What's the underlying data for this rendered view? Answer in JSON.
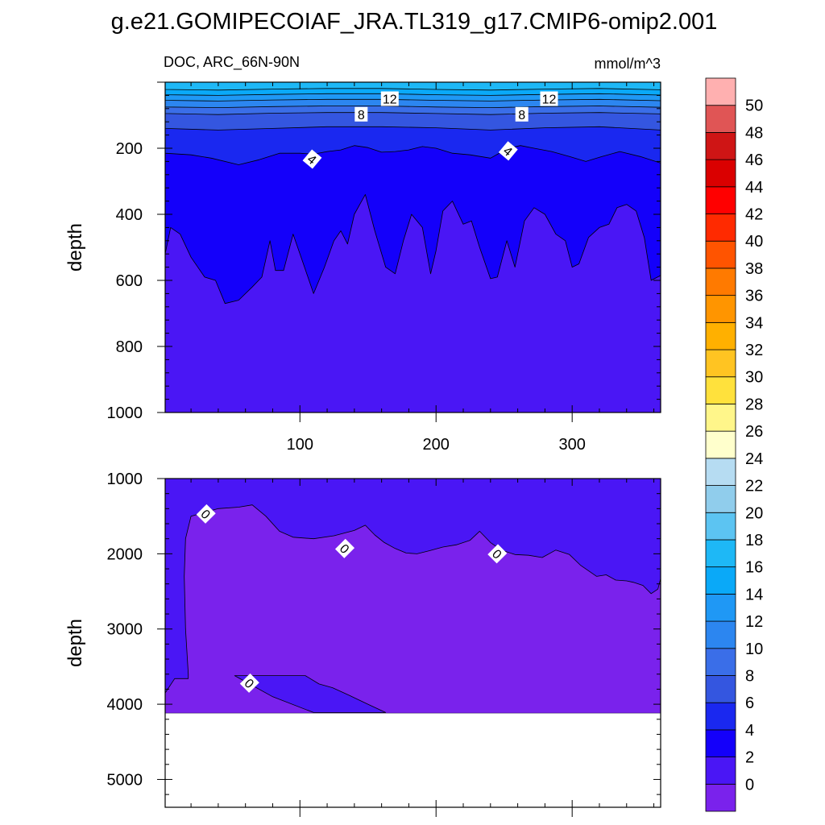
{
  "title": "g.e21.GOMIPECOIAF_JRA.TL319_g17.CMIP6-omip2.001",
  "variable_label": "DOC, ARC_66N-90N",
  "units_label": "mmol/m^3",
  "chart_data": [
    {
      "type": "heatmap",
      "panel": "upper",
      "ylabel": "depth",
      "y_reversed": true,
      "xlim": [
        1,
        365
      ],
      "ylim": [
        0,
        1000
      ],
      "x_ticks": [
        100,
        200,
        300
      ],
      "x_tick_labels": [
        "100",
        "200",
        "300"
      ],
      "y_ticks": [
        200,
        400,
        600,
        800,
        1000
      ],
      "y_tick_labels": [
        "200",
        "400",
        "600",
        "800",
        "1000"
      ],
      "contour_labels": [
        {
          "text": "12",
          "x": 166,
          "y": 50
        },
        {
          "text": "12",
          "x": 283,
          "y": 50
        },
        {
          "text": "8",
          "x": 145,
          "y": 97
        },
        {
          "text": "8",
          "x": 263,
          "y": 97
        },
        {
          "text": "4",
          "x": 109,
          "y": 233
        },
        {
          "text": "4",
          "x": 253,
          "y": 208
        }
      ],
      "regions": [
        {
          "level_range": "0-2",
          "color": "#4a16f5",
          "boundary": null
        },
        {
          "level_range": "2-4",
          "color": "#1400fa",
          "boundary": [
            [
              1,
              520
            ],
            [
              5,
              440
            ],
            [
              12,
              460
            ],
            [
              20,
              530
            ],
            [
              30,
              590
            ],
            [
              38,
              600
            ],
            [
              45,
              670
            ],
            [
              55,
              660
            ],
            [
              65,
              620
            ],
            [
              72,
              590
            ],
            [
              78,
              480
            ],
            [
              82,
              570
            ],
            [
              88,
              570
            ],
            [
              95,
              460
            ],
            [
              103,
              555
            ],
            [
              110,
              640
            ],
            [
              118,
              560
            ],
            [
              125,
              480
            ],
            [
              130,
              450
            ],
            [
              135,
              490
            ],
            [
              140,
              400
            ],
            [
              148,
              340
            ],
            [
              155,
              450
            ],
            [
              163,
              560
            ],
            [
              170,
              580
            ],
            [
              176,
              480
            ],
            [
              182,
              400
            ],
            [
              190,
              440
            ],
            [
              196,
              580
            ],
            [
              200,
              510
            ],
            [
              205,
              390
            ],
            [
              212,
              360
            ],
            [
              220,
              430
            ],
            [
              226,
              420
            ],
            [
              232,
              500
            ],
            [
              240,
              595
            ],
            [
              245,
              590
            ],
            [
              252,
              480
            ],
            [
              258,
              560
            ],
            [
              265,
              420
            ],
            [
              272,
              380
            ],
            [
              280,
              400
            ],
            [
              288,
              460
            ],
            [
              295,
              480
            ],
            [
              300,
              560
            ],
            [
              305,
              550
            ],
            [
              312,
              470
            ],
            [
              320,
              440
            ],
            [
              327,
              430
            ],
            [
              333,
              380
            ],
            [
              340,
              370
            ],
            [
              347,
              390
            ],
            [
              353,
              470
            ],
            [
              358,
              600
            ],
            [
              365,
              585
            ]
          ]
        },
        {
          "level_range": "4-6",
          "color": "#1a28f0",
          "boundary": [
            [
              1,
              215
            ],
            [
              20,
              220
            ],
            [
              35,
              230
            ],
            [
              55,
              250
            ],
            [
              70,
              235
            ],
            [
              85,
              215
            ],
            [
              100,
              215
            ],
            [
              110,
              218
            ],
            [
              120,
              210
            ],
            [
              130,
              205
            ],
            [
              140,
              192
            ],
            [
              150,
              198
            ],
            [
              160,
              212
            ],
            [
              170,
              210
            ],
            [
              180,
              205
            ],
            [
              190,
              195
            ],
            [
              200,
              200
            ],
            [
              212,
              215
            ],
            [
              225,
              220
            ],
            [
              240,
              230
            ],
            [
              253,
              200
            ],
            [
              262,
              192
            ],
            [
              272,
              200
            ],
            [
              285,
              210
            ],
            [
              298,
              225
            ],
            [
              310,
              240
            ],
            [
              322,
              225
            ],
            [
              335,
              210
            ],
            [
              350,
              225
            ],
            [
              365,
              245
            ]
          ]
        },
        {
          "level_range": "6-8",
          "color": "#3456e0",
          "boundary": [
            [
              1,
              140
            ],
            [
              40,
              145
            ],
            [
              80,
              140
            ],
            [
              120,
              135
            ],
            [
              160,
              135
            ],
            [
              200,
              138
            ],
            [
              240,
              145
            ],
            [
              280,
              138
            ],
            [
              320,
              135
            ],
            [
              365,
              145
            ]
          ]
        },
        {
          "level_range": "8-10",
          "color": "#3a6ee8",
          "boundary": [
            [
              1,
              95
            ],
            [
              40,
              98
            ],
            [
              80,
              94
            ],
            [
              120,
              92
            ],
            [
              160,
              92
            ],
            [
              200,
              95
            ],
            [
              240,
              98
            ],
            [
              280,
              94
            ],
            [
              320,
              92
            ],
            [
              365,
              96
            ]
          ]
        },
        {
          "level_range": "10-12",
          "color": "#2c86f0",
          "boundary": [
            [
              1,
              75
            ],
            [
              40,
              77
            ],
            [
              80,
              74
            ],
            [
              120,
              72
            ],
            [
              160,
              72
            ],
            [
              200,
              75
            ],
            [
              240,
              77
            ],
            [
              280,
              74
            ],
            [
              320,
              72
            ],
            [
              365,
              76
            ]
          ]
        },
        {
          "level_range": "12-14",
          "color": "#1f98f5",
          "boundary": [
            [
              1,
              55
            ],
            [
              40,
              57
            ],
            [
              80,
              54
            ],
            [
              120,
              52
            ],
            [
              160,
              52
            ],
            [
              200,
              55
            ],
            [
              240,
              57
            ],
            [
              280,
              54
            ],
            [
              320,
              52
            ],
            [
              365,
              56
            ]
          ]
        },
        {
          "level_range": "14-16",
          "color": "#0aa9f8",
          "boundary": [
            [
              1,
              38
            ],
            [
              40,
              40
            ],
            [
              80,
              37
            ],
            [
              120,
              35
            ],
            [
              160,
              35
            ],
            [
              200,
              38
            ],
            [
              240,
              40
            ],
            [
              280,
              37
            ],
            [
              320,
              35
            ],
            [
              365,
              39
            ]
          ]
        },
        {
          "level_range": "16-18",
          "color": "#1eb8f6",
          "boundary": [
            [
              1,
              22
            ],
            [
              40,
              24
            ],
            [
              80,
              21
            ],
            [
              120,
              19
            ],
            [
              160,
              19
            ],
            [
              200,
              22
            ],
            [
              240,
              24
            ],
            [
              280,
              21
            ],
            [
              320,
              19
            ],
            [
              365,
              23
            ]
          ]
        }
      ]
    },
    {
      "type": "heatmap",
      "panel": "lower",
      "ylabel": "depth",
      "y_reversed": true,
      "xlim": [
        1,
        365
      ],
      "ylim": [
        1000,
        5370
      ],
      "x_ticks": [
        100,
        200,
        300
      ],
      "x_tick_labels": [],
      "y_ticks": [
        1000,
        2000,
        3000,
        4000,
        5000
      ],
      "y_tick_labels": [
        "1000",
        "2000",
        "3000",
        "4000",
        "5000"
      ],
      "data_bottom": 4120,
      "contour_labels": [
        {
          "text": "0",
          "x": 31,
          "y": 1470
        },
        {
          "text": "0",
          "x": 133,
          "y": 1930
        },
        {
          "text": "0",
          "x": 245,
          "y": 2000
        },
        {
          "text": "0",
          "x": 63,
          "y": 3720
        }
      ],
      "regions": [
        {
          "level_range": "0-2",
          "color": "#4a16f5",
          "boundary": null
        },
        {
          "level_range": "<0",
          "color": "#7a22ec",
          "polygon": [
            [
              18,
              3600
            ],
            [
              16,
              3000
            ],
            [
              15,
              2300
            ],
            [
              16,
              1800
            ],
            [
              20,
              1500
            ],
            [
              30,
              1450
            ],
            [
              40,
              1400
            ],
            [
              55,
              1380
            ],
            [
              65,
              1350
            ],
            [
              75,
              1500
            ],
            [
              85,
              1700
            ],
            [
              95,
              1780
            ],
            [
              110,
              1800
            ],
            [
              125,
              1760
            ],
            [
              140,
              1690
            ],
            [
              148,
              1620
            ],
            [
              155,
              1750
            ],
            [
              162,
              1850
            ],
            [
              170,
              1930
            ],
            [
              178,
              1990
            ],
            [
              186,
              2000
            ],
            [
              195,
              1960
            ],
            [
              205,
              1910
            ],
            [
              215,
              1880
            ],
            [
              225,
              1820
            ],
            [
              232,
              1700
            ],
            [
              240,
              1850
            ],
            [
              248,
              1950
            ],
            [
              258,
              2010
            ],
            [
              268,
              2020
            ],
            [
              278,
              2050
            ],
            [
              288,
              1950
            ],
            [
              298,
              2010
            ],
            [
              306,
              2150
            ],
            [
              318,
              2300
            ],
            [
              325,
              2280
            ],
            [
              332,
              2350
            ],
            [
              340,
              2360
            ],
            [
              345,
              2380
            ],
            [
              352,
              2420
            ],
            [
              358,
              2530
            ],
            [
              363,
              2470
            ],
            [
              365,
              2330
            ],
            [
              365,
              4120
            ],
            [
              1,
              4120
            ],
            [
              1,
              3850
            ],
            [
              8,
              3660
            ],
            [
              18,
              3660
            ]
          ]
        },
        {
          "level_range": "0-2",
          "color": "#4a16f5",
          "polygon": [
            [
              52,
              3620
            ],
            [
              104,
              3620
            ],
            [
              114,
              3730
            ],
            [
              124,
              3780
            ],
            [
              136,
              3880
            ],
            [
              150,
              4000
            ],
            [
              163,
              4110
            ],
            [
              110,
              4110
            ],
            [
              80,
              3900
            ],
            [
              52,
              3620
            ]
          ]
        }
      ]
    }
  ],
  "colorbar": {
    "levels": [
      "0",
      "2",
      "4",
      "6",
      "8",
      "10",
      "12",
      "14",
      "16",
      "18",
      "20",
      "22",
      "24",
      "26",
      "28",
      "30",
      "32",
      "34",
      "36",
      "38",
      "40",
      "42",
      "44",
      "46",
      "48",
      "50"
    ],
    "colors": [
      "#7a22ec",
      "#4a16f5",
      "#1400fa",
      "#1a28f0",
      "#3456e0",
      "#3a6ee8",
      "#2c86f0",
      "#1f98f5",
      "#0aa9f8",
      "#1eb8f6",
      "#5cc4f2",
      "#90cdec",
      "#b6dcf2",
      "#ffffcc",
      "#fff68a",
      "#ffe13c",
      "#ffc422",
      "#ffb000",
      "#ff9500",
      "#ff7a00",
      "#ff5400",
      "#ff2a00",
      "#ff0000",
      "#da0000",
      "#cf1515",
      "#e05555",
      "#ffb0b0"
    ]
  }
}
